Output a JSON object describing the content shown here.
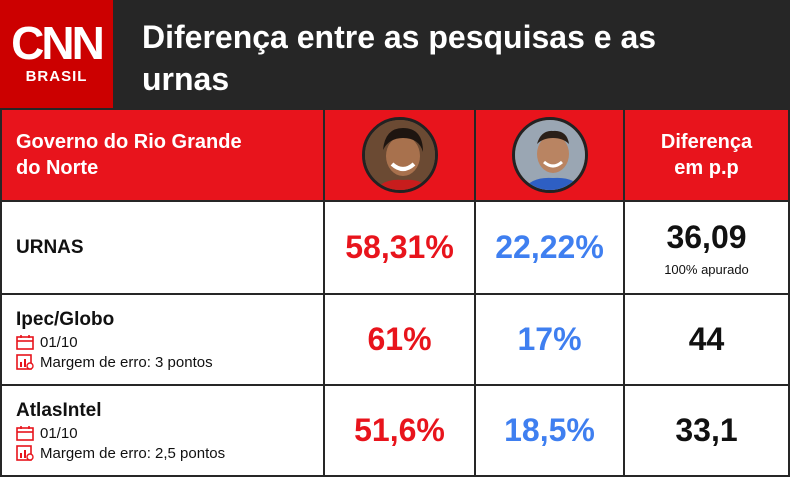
{
  "brand": {
    "logo_text": "CNN",
    "logo_subtitle": "BRASIL"
  },
  "title": "Diferença entre as pesquisas e as urnas",
  "header_row": {
    "label": "Governo do Rio Grande do Norte",
    "diff_label": "Diferença em p.p"
  },
  "rows": [
    {
      "label": "URNAS",
      "cand1": "58,31%",
      "cand2": "22,22%",
      "diff": "36,09",
      "note": "100% apurado"
    },
    {
      "label": "Ipec/Globo",
      "date": "01/10",
      "margin": "Margem de erro: 3 pontos",
      "cand1": "61%",
      "cand2": "17%",
      "diff": "44"
    },
    {
      "label": "AtlasIntel",
      "date": "01/10",
      "margin": "Margem de erro: 2,5 pontos",
      "cand1": "51,6%",
      "cand2": "18,5%",
      "diff": "33,1"
    }
  ],
  "colors": {
    "brand_red": "#e8141c",
    "candidate1": "#e8141c",
    "candidate2": "#3f7ff0",
    "header_bg": "#262626"
  },
  "icons": {
    "date": "calendar-icon",
    "margin": "chart-doc-icon"
  }
}
